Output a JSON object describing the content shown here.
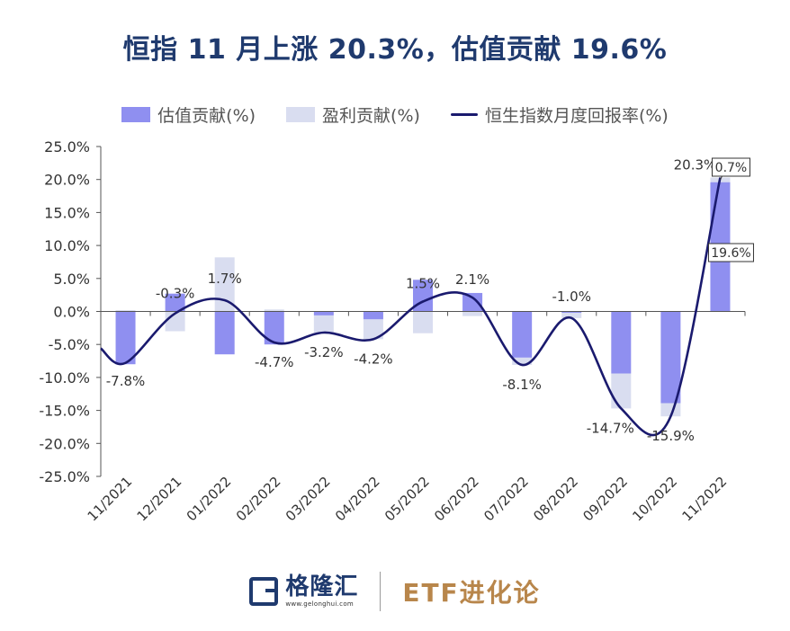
{
  "title": "恒指 11 月上涨 20.3%，估值贡献 19.6%",
  "legend": [
    {
      "label": "估值贡献(%)",
      "color": "#8f8ff0"
    },
    {
      "label": "盈利贡献(%)",
      "color": "#d9ddf0"
    },
    {
      "label": "恒生指数月度回报率(%)",
      "color": "#1a1a6e"
    }
  ],
  "footer": {
    "brand": "格隆汇",
    "url": "www.gelonghui.com",
    "channel": "ETF进化论"
  },
  "chart_data": {
    "type": "bar",
    "categories": [
      "11/2021",
      "12/2021",
      "01/2022",
      "02/2022",
      "03/2022",
      "04/2022",
      "05/2022",
      "06/2022",
      "07/2022",
      "08/2022",
      "09/2022",
      "10/2022",
      "11/2022"
    ],
    "series": [
      {
        "name": "估值贡献(%)",
        "type": "bar",
        "color": "#8f8ff0",
        "values": [
          -8.0,
          2.7,
          -6.5,
          -5.0,
          -0.6,
          -1.2,
          4.8,
          2.8,
          -7.0,
          -0.2,
          -9.4,
          -13.9,
          19.6
        ]
      },
      {
        "name": "盈利贡献(%)",
        "type": "bar",
        "color": "#d9ddf0",
        "values": [
          0.2,
          -3.0,
          8.2,
          0.3,
          -2.6,
          -3.0,
          -3.3,
          -0.7,
          -1.1,
          -0.8,
          -5.3,
          -2.0,
          0.7
        ]
      },
      {
        "name": "恒生指数月度回报率(%)",
        "type": "line",
        "color": "#1a1a6e",
        "values": [
          -7.8,
          -0.3,
          1.7,
          -4.7,
          -3.2,
          -4.2,
          1.5,
          2.1,
          -8.1,
          -1.0,
          -14.7,
          -15.9,
          20.3
        ]
      }
    ],
    "data_labels": [
      "-7.8%",
      "-0.3%",
      "1.7%",
      "-4.7%",
      "-3.2%",
      "-4.2%",
      "1.5%",
      "2.1%",
      "-8.1%",
      "-1.0%",
      "-14.7%",
      "-15.9%",
      "20.3%"
    ],
    "callouts": [
      "0.7%",
      "19.6%"
    ],
    "yticks": [
      "25.0%",
      "20.0%",
      "15.0%",
      "10.0%",
      "5.0%",
      "0.0%",
      "-5.0%",
      "-10.0%",
      "-15.0%",
      "-20.0%",
      "-25.0%"
    ],
    "ylim": [
      -25,
      25
    ],
    "grid": false,
    "legend_position": "top"
  }
}
